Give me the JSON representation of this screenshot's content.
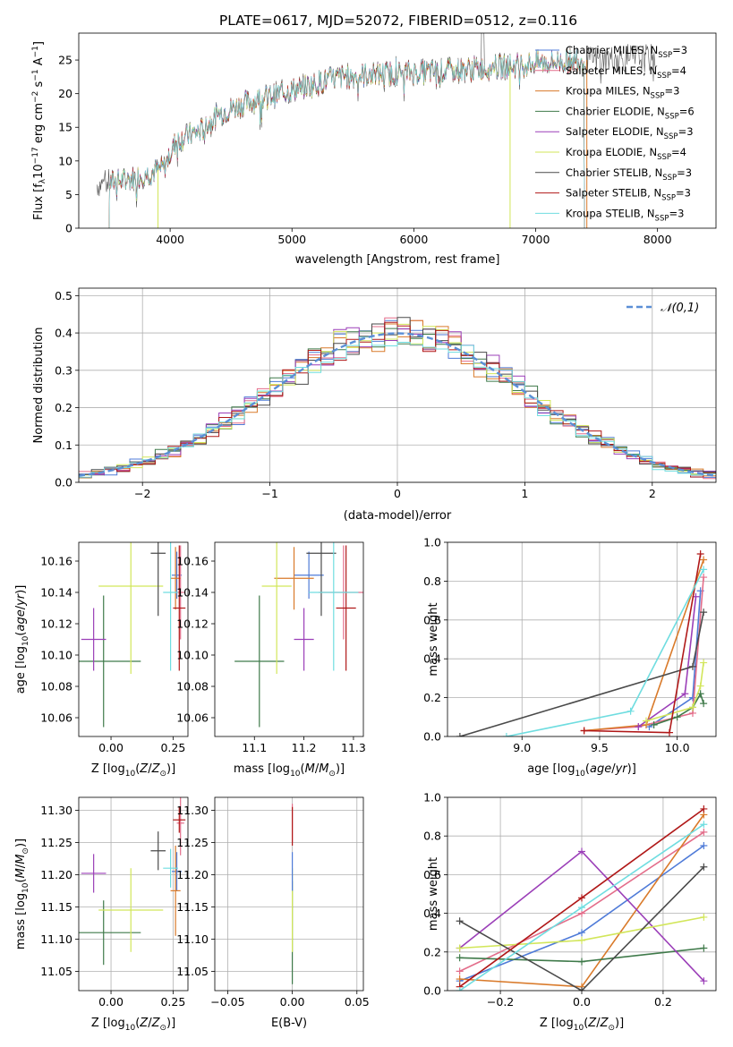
{
  "title": "PLATE=0617, MJD=52072, FIBERID=0512, z=0.116",
  "colors": {
    "chab_miles": "#4f7bd8",
    "salp_miles": "#e36d8a",
    "krou_miles": "#d97a2a",
    "chab_elodie": "#3f7a4a",
    "salp_elodie": "#9b3fb8",
    "krou_elodie": "#d2e65a",
    "chab_stelib": "#4a4a4a",
    "salp_stelib": "#b01818",
    "krou_stelib": "#6fdde0",
    "normal": "#5b8fd6"
  },
  "legend": [
    {
      "key": "chab_miles",
      "base": "Chabrier MILES, N",
      "sub": "SSP",
      "tail": "=3"
    },
    {
      "key": "salp_miles",
      "base": "Salpeter MILES, N",
      "sub": "SSP",
      "tail": "=4"
    },
    {
      "key": "krou_miles",
      "base": "Kroupa MILES, N",
      "sub": "SSP",
      "tail": "=3"
    },
    {
      "key": "chab_elodie",
      "base": "Chabrier ELODIE, N",
      "sub": "SSP",
      "tail": "=6"
    },
    {
      "key": "salp_elodie",
      "base": "Salpeter ELODIE, N",
      "sub": "SSP",
      "tail": "=3"
    },
    {
      "key": "krou_elodie",
      "base": "Kroupa ELODIE, N",
      "sub": "SSP",
      "tail": "=4"
    },
    {
      "key": "chab_stelib",
      "base": "Chabrier STELIB, N",
      "sub": "SSP",
      "tail": "=3"
    },
    {
      "key": "salp_stelib",
      "base": "Salpeter STELIB, N",
      "sub": "SSP",
      "tail": "=3"
    },
    {
      "key": "krou_stelib",
      "base": "Kroupa STELIB, N",
      "sub": "SSP",
      "tail": "=3"
    }
  ],
  "chart_data": [
    {
      "type": "line",
      "xlabel": "wavelength [Angstrom, rest frame]",
      "ylabel": "Flux [fλ 10^-17 erg cm^-2 s^-1 A^-1]",
      "xlim": [
        3250,
        8480
      ],
      "ylim": [
        0,
        29
      ],
      "xticks": [
        4000,
        5000,
        6000,
        7000,
        8000
      ],
      "yticks": [
        0,
        5,
        10,
        15,
        20,
        25
      ],
      "continuum": [
        [
          3400,
          6.5
        ],
        [
          3600,
          7
        ],
        [
          3800,
          8
        ],
        [
          3950,
          9
        ],
        [
          4050,
          13
        ],
        [
          4250,
          14.5
        ],
        [
          4400,
          17
        ],
        [
          4600,
          18.5
        ],
        [
          4900,
          20
        ],
        [
          5200,
          21.5
        ],
        [
          5400,
          22.5
        ],
        [
          5800,
          23
        ],
        [
          6200,
          23.3
        ],
        [
          6600,
          23.8
        ],
        [
          7000,
          24.5
        ],
        [
          7400,
          25
        ],
        [
          7800,
          25.3
        ],
        [
          8000,
          25.3
        ]
      ],
      "data_span": [
        3400,
        8000
      ],
      "model_span": [
        3500,
        7400
      ]
    },
    {
      "type": "line",
      "xlabel": "(data-model)/error",
      "ylabel": "Normed distribution",
      "xlim": [
        -2.5,
        2.5
      ],
      "ylim": [
        0,
        0.52
      ],
      "xticks": [
        -2,
        -1,
        0,
        1,
        2
      ],
      "yticks": [
        0.0,
        0.1,
        0.2,
        0.3,
        0.4,
        0.5
      ],
      "reference_label": "𝒩(0,1)",
      "bin_width": 0.1
    },
    {
      "type": "scatter",
      "xlabel": "Z [log10(Z/Z⊙)]",
      "ylabel": "age [log10(age/yr)]",
      "xlim": [
        -0.13,
        0.31
      ],
      "ylim": [
        10.048,
        10.172
      ],
      "xticks": [
        0.0,
        0.25
      ],
      "yticks": [
        10.06,
        10.08,
        10.1,
        10.12,
        10.14,
        10.16
      ],
      "points": [
        {
          "key": "chab_miles",
          "x": 0.265,
          "xerr": 0.02,
          "y": 10.151,
          "yerr": 0.015
        },
        {
          "key": "salp_miles",
          "x": 0.28,
          "xerr": 0.015,
          "y": 10.14,
          "yerr": 0.03
        },
        {
          "key": "krou_miles",
          "x": 0.26,
          "xerr": 0.02,
          "y": 10.149,
          "yerr": 0.02
        },
        {
          "key": "chab_elodie",
          "x": -0.03,
          "xerr": 0.15,
          "y": 10.096,
          "yerr": 0.042
        },
        {
          "key": "salp_elodie",
          "x": -0.07,
          "xerr": 0.05,
          "y": 10.11,
          "yerr": 0.02
        },
        {
          "key": "krou_elodie",
          "x": 0.08,
          "xerr": 0.13,
          "y": 10.144,
          "yerr": 0.056
        },
        {
          "key": "chab_stelib",
          "x": 0.19,
          "xerr": 0.03,
          "y": 10.165,
          "yerr": 0.04
        },
        {
          "key": "salp_stelib",
          "x": 0.275,
          "xerr": 0.025,
          "y": 10.13,
          "yerr": 0.04
        },
        {
          "key": "krou_stelib",
          "x": 0.24,
          "xerr": 0.03,
          "y": 10.14,
          "yerr": 0.05
        }
      ]
    },
    {
      "type": "scatter",
      "xlabel": "mass [log10(M/M⊙)]",
      "ylabel": "",
      "xlim": [
        11.02,
        11.32
      ],
      "ylim": [
        10.048,
        10.172
      ],
      "xticks": [
        11.1,
        11.2,
        11.3
      ],
      "yticks": [
        10.06,
        10.08,
        10.1,
        10.12,
        10.14,
        10.16
      ],
      "points": [
        {
          "key": "chab_miles",
          "x": 11.21,
          "xerr": 0.03,
          "y": 10.151,
          "yerr": 0.015
        },
        {
          "key": "salp_miles",
          "x": 11.28,
          "xerr": 0.05,
          "y": 10.14,
          "yerr": 0.03
        },
        {
          "key": "krou_miles",
          "x": 11.18,
          "xerr": 0.04,
          "y": 10.149,
          "yerr": 0.02
        },
        {
          "key": "chab_elodie",
          "x": 11.11,
          "xerr": 0.05,
          "y": 10.096,
          "yerr": 0.042
        },
        {
          "key": "salp_elodie",
          "x": 11.2,
          "xerr": 0.02,
          "y": 10.11,
          "yerr": 0.02
        },
        {
          "key": "krou_elodie",
          "x": 11.145,
          "xerr": 0.03,
          "y": 10.144,
          "yerr": 0.056
        },
        {
          "key": "chab_stelib",
          "x": 11.235,
          "xerr": 0.03,
          "y": 10.165,
          "yerr": 0.04
        },
        {
          "key": "salp_stelib",
          "x": 11.285,
          "xerr": 0.02,
          "y": 10.13,
          "yerr": 0.04
        },
        {
          "key": "krou_stelib",
          "x": 11.26,
          "xerr": 0.05,
          "y": 10.14,
          "yerr": 0.05
        }
      ]
    },
    {
      "type": "line",
      "xlabel": "age [log10(age/yr)]",
      "ylabel": "mass weight",
      "xlim": [
        8.52,
        10.25
      ],
      "ylim": [
        0,
        1
      ],
      "xticks": [
        9.0,
        9.5,
        10.0
      ],
      "yticks": [
        0.0,
        0.2,
        0.4,
        0.6,
        0.8,
        1.0
      ],
      "series": [
        {
          "key": "chab_miles",
          "x": [
            9.82,
            10.1,
            10.15
          ],
          "y": [
            0.05,
            0.2,
            0.75
          ]
        },
        {
          "key": "salp_miles",
          "x": [
            9.4,
            9.75,
            10.1,
            10.17
          ],
          "y": [
            0.03,
            0.05,
            0.12,
            0.82
          ]
        },
        {
          "key": "krou_miles",
          "x": [
            9.4,
            9.8,
            10.17
          ],
          "y": [
            0.03,
            0.06,
            0.91
          ]
        },
        {
          "key": "chab_elodie",
          "x": [
            9.85,
            10.0,
            10.1,
            10.15,
            10.17
          ],
          "y": [
            0.06,
            0.1,
            0.15,
            0.22,
            0.17
          ]
        },
        {
          "key": "salp_elodie",
          "x": [
            9.75,
            10.05,
            10.12
          ],
          "y": [
            0.05,
            0.22,
            0.72
          ]
        },
        {
          "key": "krou_elodie",
          "x": [
            9.8,
            10.1,
            10.15,
            10.17
          ],
          "y": [
            0.08,
            0.15,
            0.26,
            0.38
          ]
        },
        {
          "key": "chab_stelib",
          "x": [
            8.6,
            10.1,
            10.17
          ],
          "y": [
            0.0,
            0.36,
            0.64
          ]
        },
        {
          "key": "salp_stelib",
          "x": [
            9.4,
            9.95,
            10.15
          ],
          "y": [
            0.03,
            0.02,
            0.94
          ]
        },
        {
          "key": "krou_stelib",
          "x": [
            8.9,
            9.7,
            10.17
          ],
          "y": [
            0.0,
            0.13,
            0.86
          ]
        }
      ]
    },
    {
      "type": "scatter",
      "xlabel": "Z [log10(Z/Z⊙)]",
      "ylabel": "mass [log10(M/M⊙)]",
      "xlim": [
        -0.13,
        0.31
      ],
      "ylim": [
        11.02,
        11.32
      ],
      "xticks": [
        0.0,
        0.25
      ],
      "yticks": [
        11.05,
        11.1,
        11.15,
        11.2,
        11.25,
        11.3
      ],
      "points": [
        {
          "key": "chab_miles",
          "x": 0.265,
          "xerr": 0.02,
          "y": 11.205,
          "yerr": 0.03
        },
        {
          "key": "salp_miles",
          "x": 0.28,
          "xerr": 0.015,
          "y": 11.28,
          "yerr": 0.05
        },
        {
          "key": "krou_miles",
          "x": 0.26,
          "xerr": 0.02,
          "y": 11.175,
          "yerr": 0.07
        },
        {
          "key": "chab_elodie",
          "x": -0.03,
          "xerr": 0.15,
          "y": 11.11,
          "yerr": 0.05
        },
        {
          "key": "salp_elodie",
          "x": -0.07,
          "xerr": 0.05,
          "y": 11.202,
          "yerr": 0.03
        },
        {
          "key": "krou_elodie",
          "x": 0.08,
          "xerr": 0.13,
          "y": 11.145,
          "yerr": 0.065
        },
        {
          "key": "chab_stelib",
          "x": 0.19,
          "xerr": 0.03,
          "y": 11.237,
          "yerr": 0.03
        },
        {
          "key": "salp_stelib",
          "x": 0.275,
          "xerr": 0.025,
          "y": 11.285,
          "yerr": 0.02
        },
        {
          "key": "krou_stelib",
          "x": 0.24,
          "xerr": 0.03,
          "y": 11.21,
          "yerr": 0.03
        }
      ]
    },
    {
      "type": "scatter",
      "xlabel": "E(B-V)",
      "ylabel": "",
      "xlim": [
        -0.06,
        0.055
      ],
      "ylim": [
        11.02,
        11.32
      ],
      "xticks": [
        -0.05,
        0.0,
        0.05
      ],
      "yticks": [
        11.05,
        11.1,
        11.15,
        11.2,
        11.25,
        11.3
      ],
      "points": [
        {
          "key": "chab_elodie",
          "x": 0.0,
          "xerr": 0.0,
          "y": 11.11,
          "yerr": 0.08
        },
        {
          "key": "krou_elodie",
          "x": 0.0,
          "xerr": 0.0,
          "y": 11.145,
          "yerr": 0.065
        },
        {
          "key": "chab_miles",
          "x": 0.0,
          "xerr": 0.0,
          "y": 11.205,
          "yerr": 0.03
        },
        {
          "key": "salp_miles",
          "x": 0.0,
          "xerr": 0.0,
          "y": 11.28,
          "yerr": 0.03
        },
        {
          "key": "salp_stelib",
          "x": 0.0,
          "xerr": 0.0,
          "y": 11.275,
          "yerr": 0.03
        }
      ]
    },
    {
      "type": "line",
      "xlabel": "Z [log10(Z/Z⊙)]",
      "ylabel": "mass weight",
      "xlim": [
        -0.33,
        0.33
      ],
      "ylim": [
        0,
        1
      ],
      "xticks": [
        -0.2,
        0.0,
        0.2
      ],
      "yticks": [
        0.0,
        0.2,
        0.4,
        0.6,
        0.8,
        1.0
      ],
      "series": [
        {
          "key": "chab_miles",
          "x": [
            -0.3,
            0.0,
            0.3
          ],
          "y": [
            0.05,
            0.3,
            0.75
          ]
        },
        {
          "key": "salp_miles",
          "x": [
            -0.3,
            0.0,
            0.3
          ],
          "y": [
            0.1,
            0.4,
            0.82
          ]
        },
        {
          "key": "krou_miles",
          "x": [
            -0.3,
            0.0,
            0.3
          ],
          "y": [
            0.06,
            0.02,
            0.91
          ]
        },
        {
          "key": "chab_elodie",
          "x": [
            -0.3,
            0.0,
            0.3
          ],
          "y": [
            0.17,
            0.15,
            0.22
          ]
        },
        {
          "key": "salp_elodie",
          "x": [
            -0.3,
            0.0,
            0.3
          ],
          "y": [
            0.22,
            0.72,
            0.05
          ]
        },
        {
          "key": "krou_elodie",
          "x": [
            -0.3,
            0.0,
            0.3
          ],
          "y": [
            0.22,
            0.26,
            0.38
          ]
        },
        {
          "key": "chab_stelib",
          "x": [
            -0.3,
            0.0,
            0.3
          ],
          "y": [
            0.36,
            0.0,
            0.64
          ]
        },
        {
          "key": "salp_stelib",
          "x": [
            -0.3,
            0.0,
            0.3
          ],
          "y": [
            0.02,
            0.48,
            0.94
          ]
        },
        {
          "key": "krou_stelib",
          "x": [
            -0.3,
            0.0,
            0.3
          ],
          "y": [
            0.0,
            0.43,
            0.86
          ]
        }
      ]
    }
  ]
}
